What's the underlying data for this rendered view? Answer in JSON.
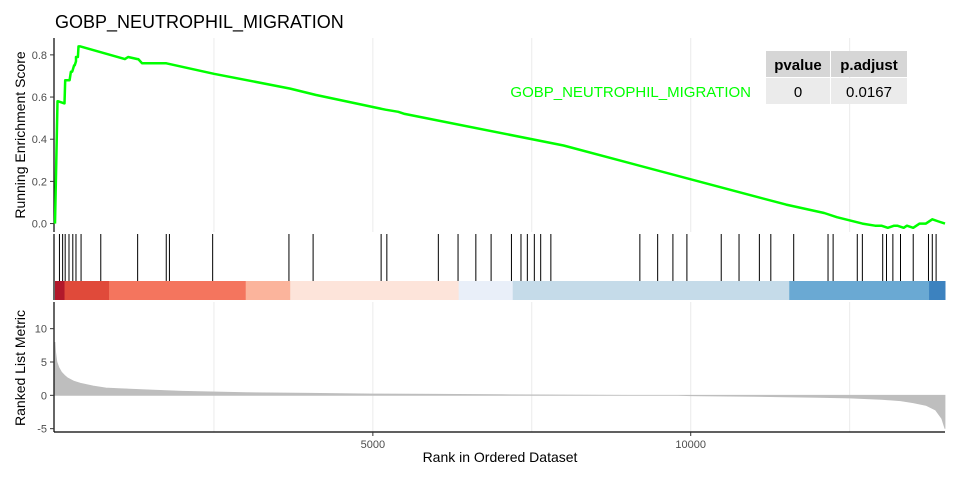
{
  "chart_data": {
    "type": "line",
    "title": "GOBP_NEUTROPHIL_MIGRATION",
    "xlabel": "Rank in Ordered Dataset",
    "xlim": [
      0,
      14000
    ],
    "x_ticks": [
      5000,
      10000
    ],
    "gridlines_x": [
      2500,
      5000,
      7500,
      10000,
      12500
    ],
    "line_color": "#00ff00",
    "panels": {
      "enrichment": {
        "ylabel": "Running Enrichment Score",
        "ylim": [
          -0.04,
          0.88
        ],
        "y_ticks": [
          0.0,
          0.2,
          0.4,
          0.6,
          0.8
        ],
        "y_tick_labels": [
          "0.0",
          "0.2",
          "0.4",
          "0.6",
          "0.8"
        ],
        "series": [
          {
            "name": "GOBP_NEUTROPHIL_MIGRATION",
            "x": [
              0,
              20,
              40,
              50,
              150,
              160,
              230,
              250,
              270,
              300,
              310,
              330,
              330,
              360,
              370,
              400,
              1100,
              1150,
              1300,
              1310,
              1370,
              1700,
              1750,
              2500,
              3700,
              4100,
              5200,
              5400,
              5500,
              8000,
              11000,
              11500,
              12100,
              12300,
              12700,
              12900,
              13000,
              13100,
              13200,
              13250,
              13350,
              13400,
              13500,
              13550,
              13600,
              13700,
              13800,
              13900,
              14000
            ],
            "y": [
              0.0,
              0.3,
              0.58,
              0.58,
              0.57,
              0.68,
              0.68,
              0.72,
              0.72,
              0.75,
              0.75,
              0.77,
              0.79,
              0.79,
              0.84,
              0.84,
              0.78,
              0.79,
              0.78,
              0.78,
              0.76,
              0.76,
              0.76,
              0.71,
              0.64,
              0.61,
              0.54,
              0.53,
              0.52,
              0.37,
              0.13,
              0.09,
              0.05,
              0.03,
              0.0,
              -0.01,
              -0.01,
              -0.02,
              -0.01,
              -0.01,
              -0.02,
              -0.01,
              -0.02,
              -0.01,
              0.0,
              0.0,
              0.02,
              0.01,
              0.0
            ]
          }
        ]
      },
      "hits": {
        "positions": [
          70,
          120,
          160,
          220,
          280,
          330,
          410,
          720,
          1300,
          1750,
          1800,
          2480,
          3680,
          4060,
          5130,
          5220,
          6030,
          6340,
          6620,
          6860,
          7180,
          7330,
          7430,
          7540,
          7640,
          7800,
          9200,
          9480,
          9720,
          9940,
          10480,
          10760,
          11080,
          11260,
          11620,
          12160,
          12240,
          12620,
          12700,
          13020,
          13080,
          13180,
          13300,
          13500,
          13740,
          13800,
          13860
        ]
      },
      "color_bar": {
        "segments": [
          {
            "from": 0,
            "to": 150,
            "color": "#b2182b"
          },
          {
            "from": 150,
            "to": 850,
            "color": "#e04a3a"
          },
          {
            "from": 850,
            "to": 3000,
            "color": "#f4755e"
          },
          {
            "from": 3000,
            "to": 3700,
            "color": "#fbb49c"
          },
          {
            "from": 3700,
            "to": 6350,
            "color": "#fde4da"
          },
          {
            "from": 6350,
            "to": 7200,
            "color": "#e9eff9"
          },
          {
            "from": 7200,
            "to": 11550,
            "color": "#c5dbe9"
          },
          {
            "from": 11550,
            "to": 13750,
            "color": "#6aa9d3"
          },
          {
            "from": 13750,
            "to": 14000,
            "color": "#3c82bf"
          }
        ]
      },
      "ranked": {
        "ylabel": "Ranked List Metric",
        "ylim": [
          -5.5,
          14
        ],
        "y_ticks": [
          -5,
          0,
          5,
          10
        ],
        "y_tick_labels": [
          "-5",
          "0",
          "5",
          "10"
        ],
        "fill_color": "#bebebe",
        "x": [
          0,
          10,
          30,
          60,
          100,
          150,
          200,
          300,
          400,
          600,
          800,
          1000,
          1500,
          2000,
          3000,
          4000,
          5000,
          6000,
          7000,
          8000,
          9000,
          9800,
          10000,
          11000,
          12000,
          12500,
          13000,
          13300,
          13500,
          13700,
          13850,
          13950,
          14000
        ],
        "y": [
          8.0,
          6.5,
          5.0,
          4.2,
          3.5,
          3.0,
          2.6,
          2.1,
          1.8,
          1.4,
          1.1,
          1.0,
          0.8,
          0.6,
          0.4,
          0.3,
          0.2,
          0.15,
          0.1,
          0.05,
          0.0,
          0.0,
          -0.05,
          -0.15,
          -0.3,
          -0.4,
          -0.6,
          -0.8,
          -1.1,
          -1.5,
          -2.2,
          -3.5,
          -5.0
        ]
      }
    },
    "table": {
      "headers": [
        "pvalue",
        "p.adjust"
      ],
      "rows": [
        [
          "0",
          "0.0167"
        ]
      ]
    }
  }
}
